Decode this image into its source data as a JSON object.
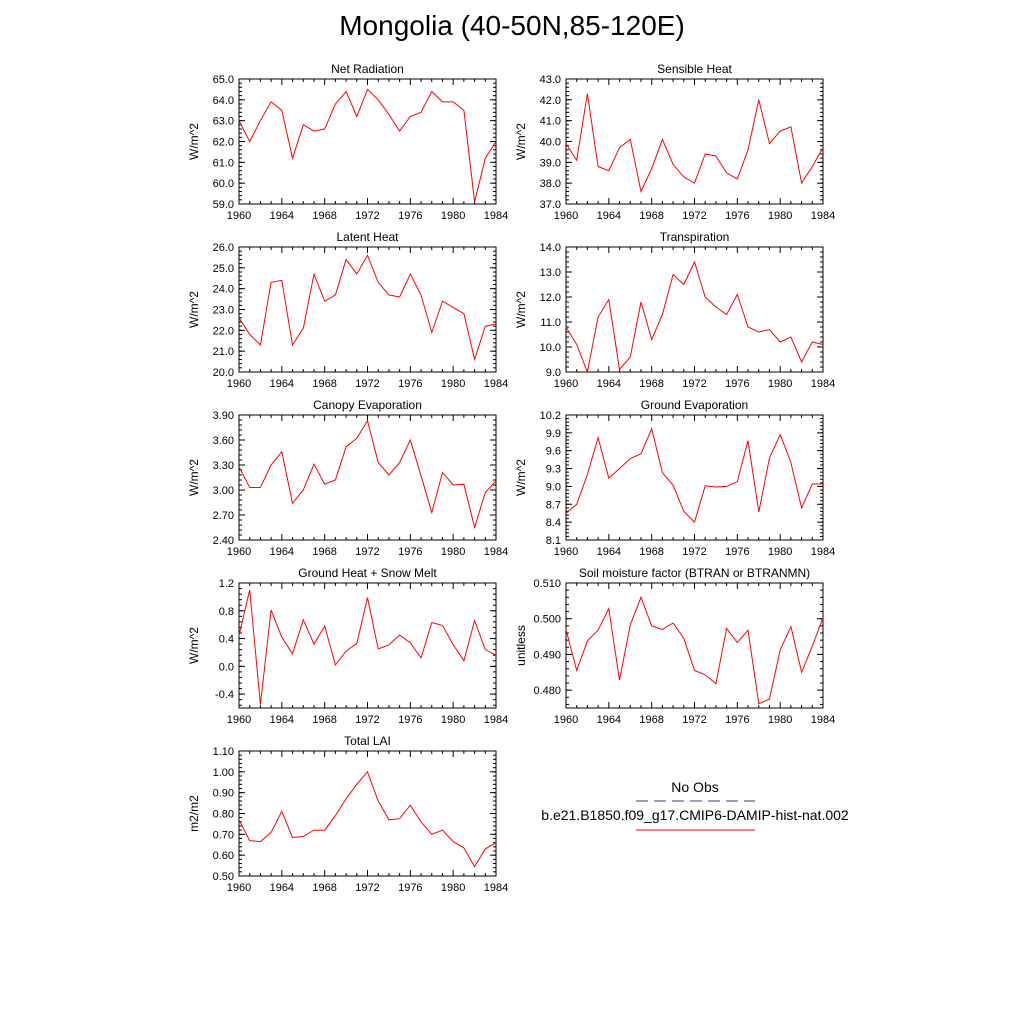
{
  "title": "Mongolia (40-50N,85-120E)",
  "legend": {
    "obs_label": "No Obs",
    "model_label": "b.e21.B1850.f09_g17.CMIP6-DAMIP-hist-nat.002",
    "obs_color": "#3a3a8c",
    "model_color": "#ff0000"
  },
  "chart_data": [
    {
      "type": "line",
      "title": "Net Radiation",
      "ylabel": "W/m^2",
      "x": [
        1960,
        1961,
        1962,
        1963,
        1964,
        1965,
        1966,
        1967,
        1968,
        1969,
        1970,
        1971,
        1972,
        1973,
        1974,
        1975,
        1976,
        1977,
        1978,
        1979,
        1980,
        1981,
        1982,
        1983,
        1984
      ],
      "values": [
        63.0,
        62.0,
        63.0,
        63.9,
        63.5,
        61.2,
        62.8,
        62.5,
        62.6,
        63.8,
        64.4,
        63.2,
        64.5,
        64.0,
        63.3,
        62.5,
        63.2,
        63.4,
        64.4,
        63.9,
        63.9,
        63.5,
        59.1,
        61.2,
        62.0
      ],
      "xlim": [
        1960,
        1984
      ],
      "ylim": [
        59.0,
        65.0
      ],
      "xticks": [
        "1960",
        "1964",
        "1968",
        "1972",
        "1976",
        "1980",
        "1984"
      ],
      "yticks": [
        "59.0",
        "60.0",
        "61.0",
        "62.0",
        "63.0",
        "64.0",
        "65.0"
      ]
    },
    {
      "type": "line",
      "title": "Sensible Heat",
      "ylabel": "W/m^2",
      "x": [
        1960,
        1961,
        1962,
        1963,
        1964,
        1965,
        1966,
        1967,
        1968,
        1969,
        1970,
        1971,
        1972,
        1973,
        1974,
        1975,
        1976,
        1977,
        1978,
        1979,
        1980,
        1981,
        1982,
        1983,
        1984
      ],
      "values": [
        39.9,
        39.1,
        42.3,
        38.8,
        38.6,
        39.7,
        40.1,
        37.6,
        38.7,
        40.1,
        38.9,
        38.3,
        38.0,
        39.4,
        39.3,
        38.5,
        38.2,
        39.6,
        42.0,
        39.9,
        40.5,
        40.7,
        38.0,
        38.8,
        39.7
      ],
      "xlim": [
        1960,
        1984
      ],
      "ylim": [
        37.0,
        43.0
      ],
      "xticks": [
        "1960",
        "1964",
        "1968",
        "1972",
        "1976",
        "1980",
        "1984"
      ],
      "yticks": [
        "37.0",
        "38.0",
        "39.0",
        "40.0",
        "41.0",
        "42.0",
        "43.0"
      ]
    },
    {
      "type": "line",
      "title": "Latent Heat",
      "ylabel": "W/m^2",
      "x": [
        1960,
        1961,
        1962,
        1963,
        1964,
        1965,
        1966,
        1967,
        1968,
        1969,
        1970,
        1971,
        1972,
        1973,
        1974,
        1975,
        1976,
        1977,
        1978,
        1979,
        1980,
        1981,
        1982,
        1983,
        1984
      ],
      "values": [
        22.6,
        21.8,
        21.3,
        24.3,
        24.4,
        21.3,
        22.1,
        24.7,
        23.4,
        23.7,
        25.4,
        24.7,
        25.6,
        24.3,
        23.7,
        23.6,
        24.7,
        23.7,
        21.9,
        23.4,
        23.1,
        22.8,
        20.6,
        22.2,
        22.3
      ],
      "xlim": [
        1960,
        1984
      ],
      "ylim": [
        20.0,
        26.0
      ],
      "xticks": [
        "1960",
        "1964",
        "1968",
        "1972",
        "1976",
        "1980",
        "1984"
      ],
      "yticks": [
        "20.0",
        "21.0",
        "22.0",
        "23.0",
        "24.0",
        "25.0",
        "26.0"
      ]
    },
    {
      "type": "line",
      "title": "Transpiration",
      "ylabel": "W/m^2",
      "x": [
        1960,
        1961,
        1962,
        1963,
        1964,
        1965,
        1966,
        1967,
        1968,
        1969,
        1970,
        1971,
        1972,
        1973,
        1974,
        1975,
        1976,
        1977,
        1978,
        1979,
        1980,
        1981,
        1982,
        1983,
        1984
      ],
      "values": [
        10.8,
        10.1,
        9.0,
        11.2,
        11.9,
        9.1,
        9.6,
        11.8,
        10.3,
        11.3,
        12.9,
        12.5,
        13.4,
        12.0,
        11.6,
        11.3,
        12.1,
        10.8,
        10.6,
        10.7,
        10.2,
        10.4,
        9.4,
        10.2,
        10.1
      ],
      "xlim": [
        1960,
        1984
      ],
      "ylim": [
        9.0,
        14.0
      ],
      "xticks": [
        "1960",
        "1964",
        "1968",
        "1972",
        "1976",
        "1980",
        "1984"
      ],
      "yticks": [
        "9.0",
        "10.0",
        "11.0",
        "12.0",
        "13.0",
        "14.0"
      ]
    },
    {
      "type": "line",
      "title": "Canopy Evaporation",
      "ylabel": "W/m^2",
      "x": [
        1960,
        1961,
        1962,
        1963,
        1964,
        1965,
        1966,
        1967,
        1968,
        1969,
        1970,
        1971,
        1972,
        1973,
        1974,
        1975,
        1976,
        1977,
        1978,
        1979,
        1980,
        1981,
        1982,
        1983,
        1984
      ],
      "values": [
        3.28,
        3.03,
        3.03,
        3.3,
        3.46,
        2.84,
        3.0,
        3.31,
        3.07,
        3.12,
        3.52,
        3.62,
        3.83,
        3.33,
        3.18,
        3.33,
        3.6,
        3.17,
        2.73,
        3.21,
        3.06,
        3.07,
        2.55,
        2.97,
        3.11
      ],
      "xlim": [
        1960,
        1984
      ],
      "ylim": [
        2.4,
        3.9
      ],
      "xticks": [
        "1960",
        "1964",
        "1968",
        "1972",
        "1976",
        "1980",
        "1984"
      ],
      "yticks": [
        "2.40",
        "2.70",
        "3.00",
        "3.30",
        "3.60",
        "3.90"
      ]
    },
    {
      "type": "line",
      "title": "Ground Evaporation",
      "ylabel": "W/m^2",
      "x": [
        1960,
        1961,
        1962,
        1963,
        1964,
        1965,
        1966,
        1967,
        1968,
        1969,
        1970,
        1971,
        1972,
        1973,
        1974,
        1975,
        1976,
        1977,
        1978,
        1979,
        1980,
        1981,
        1982,
        1983,
        1984
      ],
      "values": [
        8.55,
        8.7,
        9.2,
        9.82,
        9.14,
        9.3,
        9.47,
        9.55,
        9.97,
        9.23,
        9.02,
        8.58,
        8.4,
        9.01,
        8.99,
        9.0,
        9.08,
        9.77,
        8.57,
        9.48,
        9.87,
        9.4,
        8.64,
        9.04,
        9.04
      ],
      "xlim": [
        1960,
        1984
      ],
      "ylim": [
        8.1,
        10.2
      ],
      "xticks": [
        "1960",
        "1964",
        "1968",
        "1972",
        "1976",
        "1980",
        "1984"
      ],
      "yticks": [
        "8.1",
        "8.4",
        "8.7",
        "9.0",
        "9.3",
        "9.6",
        "9.9",
        "10.2"
      ]
    },
    {
      "type": "line",
      "title": "Ground Heat + Snow Melt",
      "ylabel": "W/m^2",
      "x": [
        1960,
        1961,
        1962,
        1963,
        1964,
        1965,
        1966,
        1967,
        1968,
        1969,
        1970,
        1971,
        1972,
        1973,
        1974,
        1975,
        1976,
        1977,
        1978,
        1979,
        1980,
        1981,
        1982,
        1983,
        1984
      ],
      "values": [
        0.44,
        1.1,
        -0.55,
        0.81,
        0.42,
        0.18,
        0.67,
        0.32,
        0.58,
        0.02,
        0.22,
        0.33,
        0.99,
        0.25,
        0.31,
        0.45,
        0.34,
        0.12,
        0.63,
        0.59,
        0.31,
        0.08,
        0.66,
        0.24,
        0.16
      ],
      "xlim": [
        1960,
        1984
      ],
      "ylim": [
        -0.6,
        1.2
      ],
      "xticks": [
        "1960",
        "1964",
        "1968",
        "1972",
        "1976",
        "1980",
        "1984"
      ],
      "yticks": [
        "-0.4",
        "0.0",
        "0.4",
        "0.8",
        "1.2"
      ],
      "ytick_values": [
        -0.4,
        0.0,
        0.4,
        0.8,
        1.2
      ]
    },
    {
      "type": "line",
      "title": "Soil moisture factor (BTRAN or BTRANMN)",
      "ylabel": "unitless",
      "x": [
        1960,
        1961,
        1962,
        1963,
        1964,
        1965,
        1966,
        1967,
        1968,
        1969,
        1970,
        1971,
        1972,
        1973,
        1974,
        1975,
        1976,
        1977,
        1978,
        1979,
        1980,
        1981,
        1982,
        1983,
        1984
      ],
      "values": [
        0.497,
        0.4855,
        0.4938,
        0.4968,
        0.5028,
        0.4828,
        0.4983,
        0.506,
        0.498,
        0.497,
        0.4988,
        0.4945,
        0.4855,
        0.4843,
        0.4818,
        0.4973,
        0.4933,
        0.4968,
        0.4762,
        0.4775,
        0.4913,
        0.4978,
        0.485,
        0.4923,
        0.5003
      ],
      "xlim": [
        1960,
        1984
      ],
      "ylim": [
        0.475,
        0.51
      ],
      "xticks": [
        "1960",
        "1964",
        "1968",
        "1972",
        "1976",
        "1980",
        "1984"
      ],
      "yticks": [
        "0.480",
        "0.490",
        "0.500",
        "0.510"
      ],
      "ytick_values": [
        0.48,
        0.49,
        0.5,
        0.51
      ]
    },
    {
      "type": "line",
      "title": "Total LAI",
      "ylabel": "m2/m2",
      "x": [
        1960,
        1961,
        1962,
        1963,
        1964,
        1965,
        1966,
        1967,
        1968,
        1969,
        1970,
        1971,
        1972,
        1973,
        1974,
        1975,
        1976,
        1977,
        1978,
        1979,
        1980,
        1981,
        1982,
        1983,
        1984
      ],
      "values": [
        0.77,
        0.67,
        0.665,
        0.71,
        0.81,
        0.685,
        0.69,
        0.72,
        0.72,
        0.79,
        0.87,
        0.94,
        1.0,
        0.86,
        0.77,
        0.775,
        0.84,
        0.76,
        0.7,
        0.72,
        0.665,
        0.635,
        0.545,
        0.63,
        0.66
      ],
      "xlim": [
        1960,
        1984
      ],
      "ylim": [
        0.5,
        1.1
      ],
      "xticks": [
        "1960",
        "1964",
        "1968",
        "1972",
        "1976",
        "1980",
        "1984"
      ],
      "yticks": [
        "0.50",
        "0.60",
        "0.70",
        "0.80",
        "0.90",
        "1.00",
        "1.10"
      ]
    }
  ]
}
